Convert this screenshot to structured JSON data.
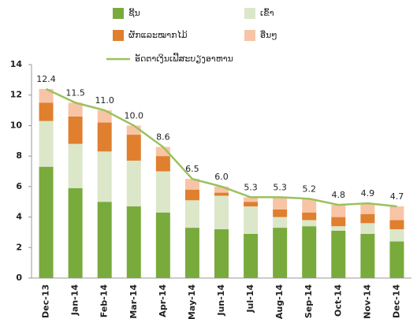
{
  "chart_data": {
    "type": "bar",
    "stacked": true,
    "categories": [
      "Dec-13",
      "Jan-14",
      "Feb-14",
      "Mar-14",
      "Apr-14",
      "May-14",
      "Jun-14",
      "Jul-14",
      "Aug-14",
      "Sep-14",
      "Oct-14",
      "Nov-14",
      "Dec-14"
    ],
    "series": [
      {
        "name": "ຊີ້ນ",
        "color": "#79aa3c",
        "values": [
          7.3,
          5.9,
          5.0,
          4.7,
          4.3,
          3.3,
          3.2,
          2.9,
          3.3,
          3.4,
          3.1,
          2.9,
          2.4
        ]
      },
      {
        "name": "ເຂົ້າ",
        "color": "#dbe7c8",
        "values": [
          3.0,
          2.9,
          3.3,
          3.0,
          2.7,
          1.8,
          2.2,
          1.8,
          0.7,
          0.4,
          0.3,
          0.7,
          0.8
        ]
      },
      {
        "name": "ຜັກແລະໝາກໄມ້",
        "color": "#e07f2e",
        "values": [
          1.2,
          1.8,
          1.9,
          1.7,
          1.0,
          0.7,
          0.2,
          0.3,
          0.5,
          0.5,
          0.6,
          0.6,
          0.6
        ]
      },
      {
        "name": "ອື່ນໆ",
        "color": "#f8c4a6",
        "values": [
          0.9,
          0.9,
          0.8,
          0.6,
          0.6,
          0.7,
          0.4,
          0.3,
          0.8,
          0.9,
          0.8,
          0.7,
          0.9
        ]
      },
      {
        "name": "ອັດຕາເງິນເຟີ້ສະບຽງອາຫານ",
        "type": "line",
        "color": "#9cc15c",
        "values": [
          12.4,
          11.5,
          11.0,
          10.0,
          8.6,
          6.5,
          6.0,
          5.3,
          5.3,
          5.2,
          4.8,
          4.9,
          4.7
        ],
        "value_labels": [
          "12.4",
          "11.5",
          "11.0",
          "10.0",
          "8.6",
          "6.5",
          "6.0",
          "5.3",
          "5.3",
          "5.2",
          "4.8",
          "4.9",
          "4.7"
        ]
      }
    ],
    "ylim": [
      0,
      14
    ],
    "yticks": [
      0,
      2,
      4,
      6,
      8,
      10,
      12,
      14
    ],
    "grid": false
  }
}
